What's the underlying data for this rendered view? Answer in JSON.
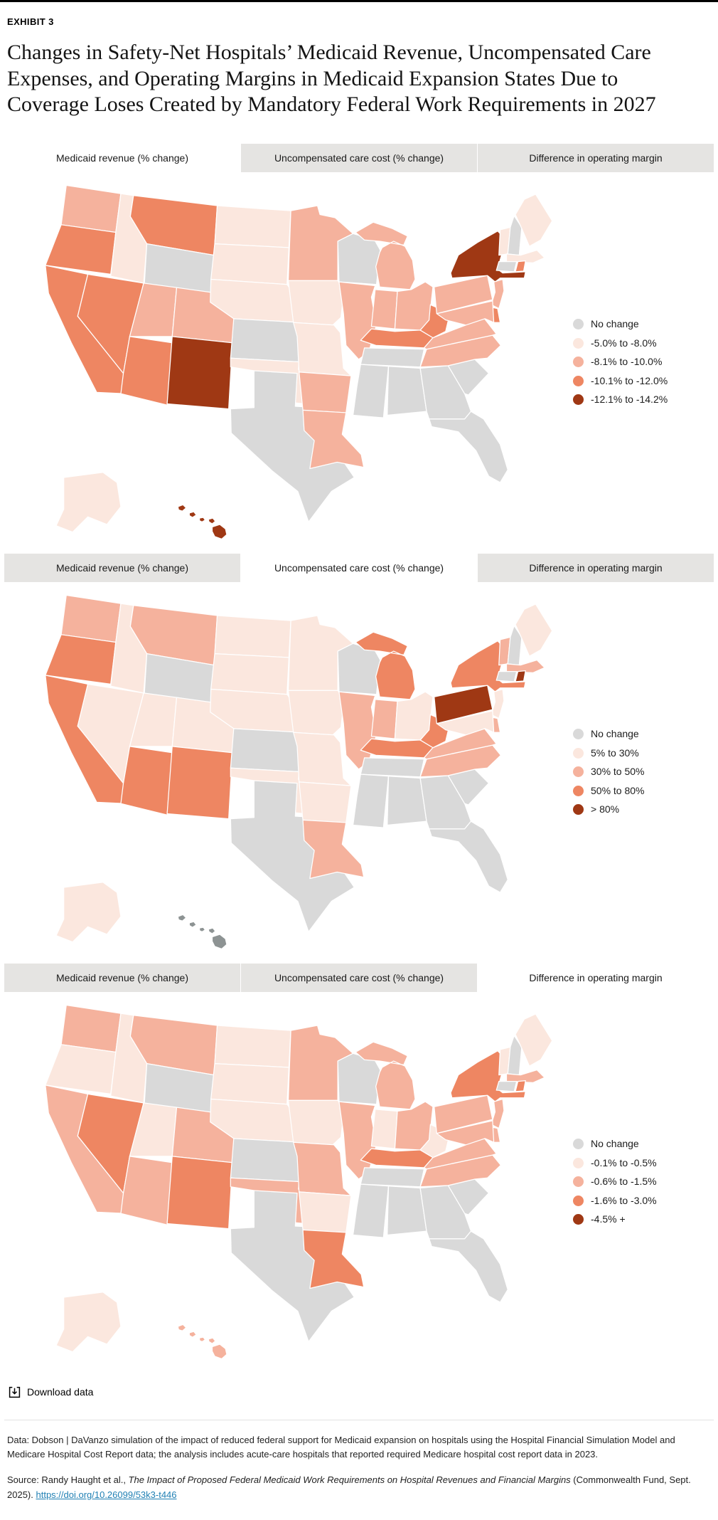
{
  "page": {
    "exhibit_label": "EXHIBIT 3",
    "title": "Changes in Safety-Net Hospitals’ Medicaid Revenue, Uncompensated Care Expenses, and Operating Margins in Medicaid Expansion States Due to Coverage Loses Created by Mandatory Federal Work Requirements in 2027"
  },
  "tabs": [
    "Medicaid revenue (% change)",
    "Uncompensated care cost (% change)",
    "Difference in operating margin"
  ],
  "chart_data": [
    {
      "type": "choropleth",
      "title": "Medicaid revenue (% change)",
      "active_tab": 0,
      "legend_position": "right",
      "legend": [
        {
          "label": "No change",
          "color": "#d9d9d9"
        },
        {
          "label": "-5.0% to -8.0%",
          "color": "#fbe7de"
        },
        {
          "label": "-8.1% to -10.0%",
          "color": "#f5b29d"
        },
        {
          "label": "-10.1% to -12.0%",
          "color": "#ee8662"
        },
        {
          "label": "-12.1% to -14.2%",
          "color": "#9f3814"
        }
      ],
      "states": {
        "WA": 2,
        "OR": 3,
        "CA": 3,
        "NV": 3,
        "ID": 1,
        "MT": 3,
        "WY": 0,
        "UT": 2,
        "CO": 2,
        "AZ": 3,
        "NM": 4,
        "ND": 1,
        "SD": 1,
        "NE": 1,
        "KS": 0,
        "OK": 1,
        "TX": 0,
        "MN": 2,
        "IA": 1,
        "MO": 1,
        "AR": 2,
        "LA": 2,
        "WI": 0,
        "IL": 2,
        "MI": 2,
        "IN": 2,
        "OH": 2,
        "KY": 3,
        "TN": 0,
        "MS": 0,
        "AL": 0,
        "GA": 0,
        "FL": 0,
        "SC": 0,
        "NC": 2,
        "VA": 2,
        "WV": 3,
        "PA": 2,
        "NY": 4,
        "NJ": 2,
        "DE": 3,
        "MD": 2,
        "CT": 0,
        "RI": 3,
        "MA": 1,
        "VT": 1,
        "NH": 0,
        "ME": 1,
        "AK": 1,
        "HI": 4
      }
    },
    {
      "type": "choropleth",
      "title": "Uncompensated care cost (% change)",
      "active_tab": 1,
      "legend_position": "right",
      "na_color": "#8d9393",
      "legend": [
        {
          "label": "No change",
          "color": "#d9d9d9"
        },
        {
          "label": "5% to 30%",
          "color": "#fbe7de"
        },
        {
          "label": "30% to 50%",
          "color": "#f5b29d"
        },
        {
          "label": "50% to 80%",
          "color": "#ee8662"
        },
        {
          "label": "> 80%",
          "color": "#9f3814"
        }
      ],
      "states": {
        "WA": 2,
        "OR": 3,
        "CA": 3,
        "NV": 1,
        "ID": 1,
        "MT": 2,
        "WY": 0,
        "UT": 1,
        "CO": 1,
        "AZ": 3,
        "NM": 3,
        "ND": 1,
        "SD": 1,
        "NE": 1,
        "KS": 0,
        "OK": 1,
        "TX": 0,
        "MN": 1,
        "IA": 1,
        "MO": 1,
        "AR": 1,
        "LA": 2,
        "WI": 0,
        "IL": 2,
        "MI": 3,
        "IN": 2,
        "OH": 1,
        "KY": 3,
        "TN": 0,
        "MS": 0,
        "AL": 0,
        "GA": 0,
        "FL": 0,
        "SC": 0,
        "NC": 2,
        "VA": 2,
        "WV": 3,
        "PA": 4,
        "NY": 3,
        "NJ": 1,
        "DE": 2,
        "MD": 1,
        "CT": 0,
        "RI": 4,
        "MA": 2,
        "VT": 2,
        "NH": 0,
        "ME": 1,
        "AK": 1,
        "HI": -1
      }
    },
    {
      "type": "choropleth",
      "title": "Difference in operating margin",
      "active_tab": 2,
      "legend_position": "right",
      "legend": [
        {
          "label": "No change",
          "color": "#d9d9d9"
        },
        {
          "label": "-0.1% to -0.5%",
          "color": "#fbe7de"
        },
        {
          "label": "-0.6% to -1.5%",
          "color": "#f5b29d"
        },
        {
          "label": "-1.6% to -3.0%",
          "color": "#ee8662"
        },
        {
          "label": "-4.5% +",
          "color": "#9f3814"
        }
      ],
      "states": {
        "WA": 2,
        "OR": 1,
        "CA": 2,
        "NV": 3,
        "ID": 1,
        "MT": 2,
        "WY": 0,
        "UT": 1,
        "CO": 2,
        "AZ": 2,
        "NM": 3,
        "ND": 1,
        "SD": 1,
        "NE": 1,
        "KS": 0,
        "OK": 2,
        "TX": 0,
        "MN": 2,
        "IA": 1,
        "MO": 2,
        "AR": 1,
        "LA": 3,
        "WI": 0,
        "IL": 2,
        "MI": 2,
        "IN": 1,
        "OH": 2,
        "KY": 3,
        "TN": 0,
        "MS": 0,
        "AL": 0,
        "GA": 0,
        "FL": 0,
        "SC": 0,
        "NC": 2,
        "VA": 2,
        "WV": 1,
        "PA": 2,
        "NY": 3,
        "NJ": 2,
        "DE": 2,
        "MD": 2,
        "CT": 0,
        "RI": 3,
        "MA": 2,
        "VT": 1,
        "NH": 0,
        "ME": 1,
        "AK": 1,
        "HI": 2
      }
    }
  ],
  "footer": {
    "download_label": "Download data",
    "data_note": "Data: Dobson | DaVanzo simulation of the impact of reduced federal support for Medicaid expansion on hospitals using the Hospital Financial Simulation Model and Medicare Hospital Cost Report data; the analysis includes acute-care hospitals that reported required Medicare hospital cost report data in 2023.",
    "source_prefix": "Source: Randy Haught et al., ",
    "source_title": "The Impact of Proposed Federal Medicaid Work Requirements on Hospital Revenues and Financial Margins",
    "source_suffix": " (Commonwealth Fund, Sept. 2025). ",
    "source_link_text": "https://doi.org/10.26099/53k3-t446"
  }
}
